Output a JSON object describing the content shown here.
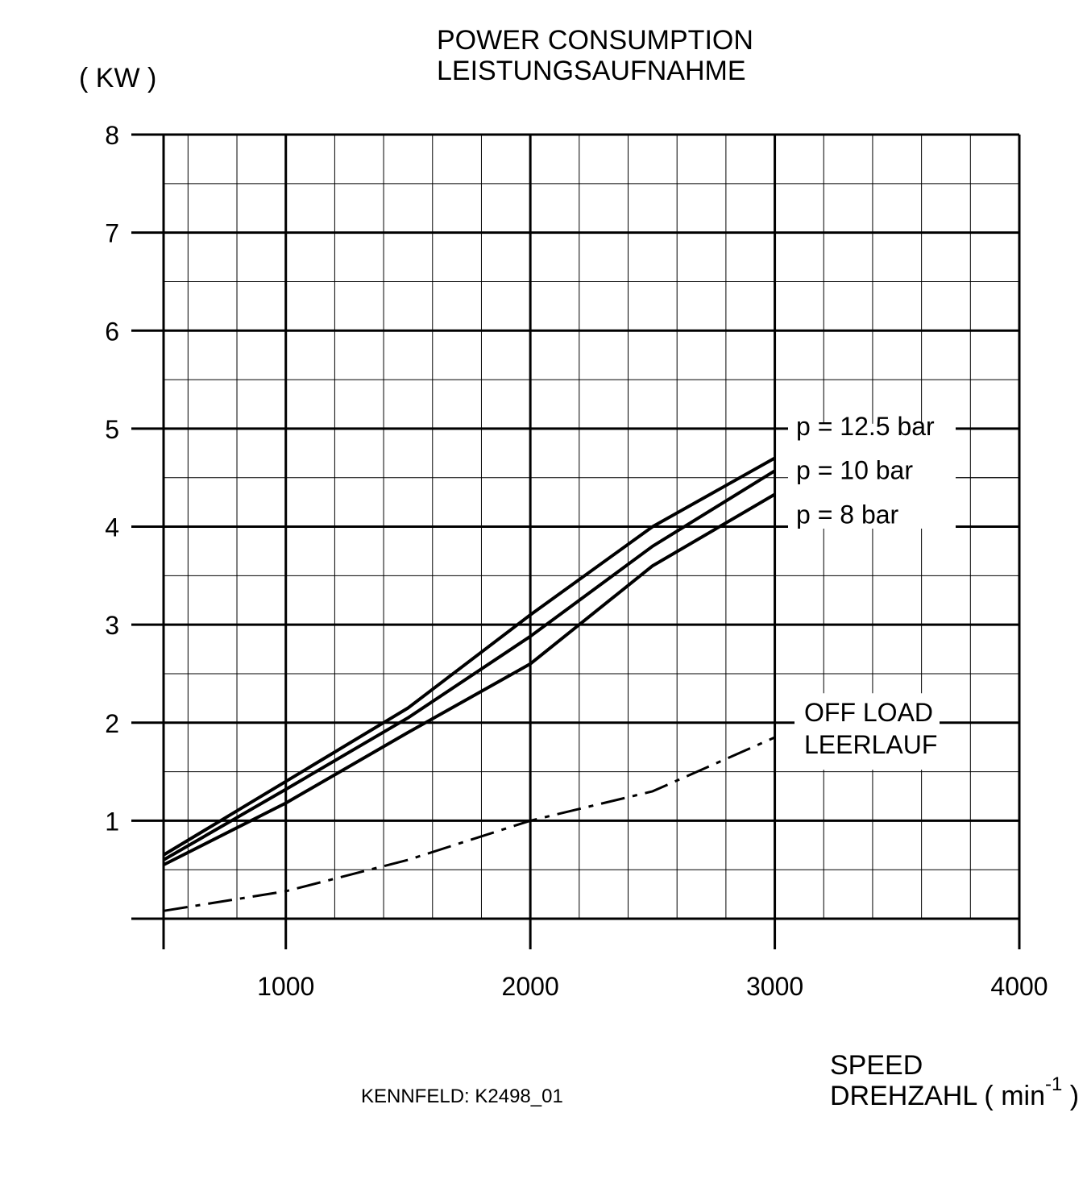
{
  "title": "POWER CONSUMPTION",
  "subtitle": "LEISTUNGSAUFNAHME",
  "footer": "KENNFELD:  K2498_01",
  "chart_data": {
    "type": "line",
    "ylabel": "( KW )",
    "xlabel_line1": "SPEED",
    "xlabel_line2": "DREHZAHL ( min",
    "xlabel_sup": "-1",
    "xlabel_end": " )",
    "xlim": [
      500,
      4000
    ],
    "ylim": [
      0,
      8
    ],
    "x_ticks": [
      1000,
      2000,
      3000,
      4000
    ],
    "x_tick_labels": [
      "1000",
      "2000",
      "3000",
      "4000"
    ],
    "y_ticks": [
      1,
      2,
      3,
      4,
      5,
      6,
      7,
      8
    ],
    "y_tick_labels": [
      "1",
      "2",
      "3",
      "4",
      "5",
      "6",
      "7",
      "8"
    ],
    "grid": true,
    "series": [
      {
        "name": "p = 12.5 bar",
        "style": "solid",
        "x": [
          500,
          1000,
          1500,
          2000,
          2500,
          3000
        ],
        "y": [
          0.65,
          1.4,
          2.15,
          3.1,
          4.0,
          4.7
        ]
      },
      {
        "name": "p = 10 bar",
        "style": "solid",
        "x": [
          500,
          1000,
          1500,
          2000,
          2500,
          3000
        ],
        "y": [
          0.6,
          1.32,
          2.05,
          2.88,
          3.8,
          4.57
        ]
      },
      {
        "name": "p = 8 bar",
        "style": "solid",
        "x": [
          500,
          1000,
          1500,
          2000,
          2500,
          3000
        ],
        "y": [
          0.55,
          1.18,
          1.9,
          2.6,
          3.6,
          4.33
        ]
      },
      {
        "name": "OFF LOAD",
        "name2": "LEERLAUF",
        "style": "dashdot",
        "x": [
          500,
          1000,
          1500,
          2000,
          2500,
          3000
        ],
        "y": [
          0.08,
          0.28,
          0.6,
          1.0,
          1.3,
          1.85
        ]
      }
    ]
  }
}
